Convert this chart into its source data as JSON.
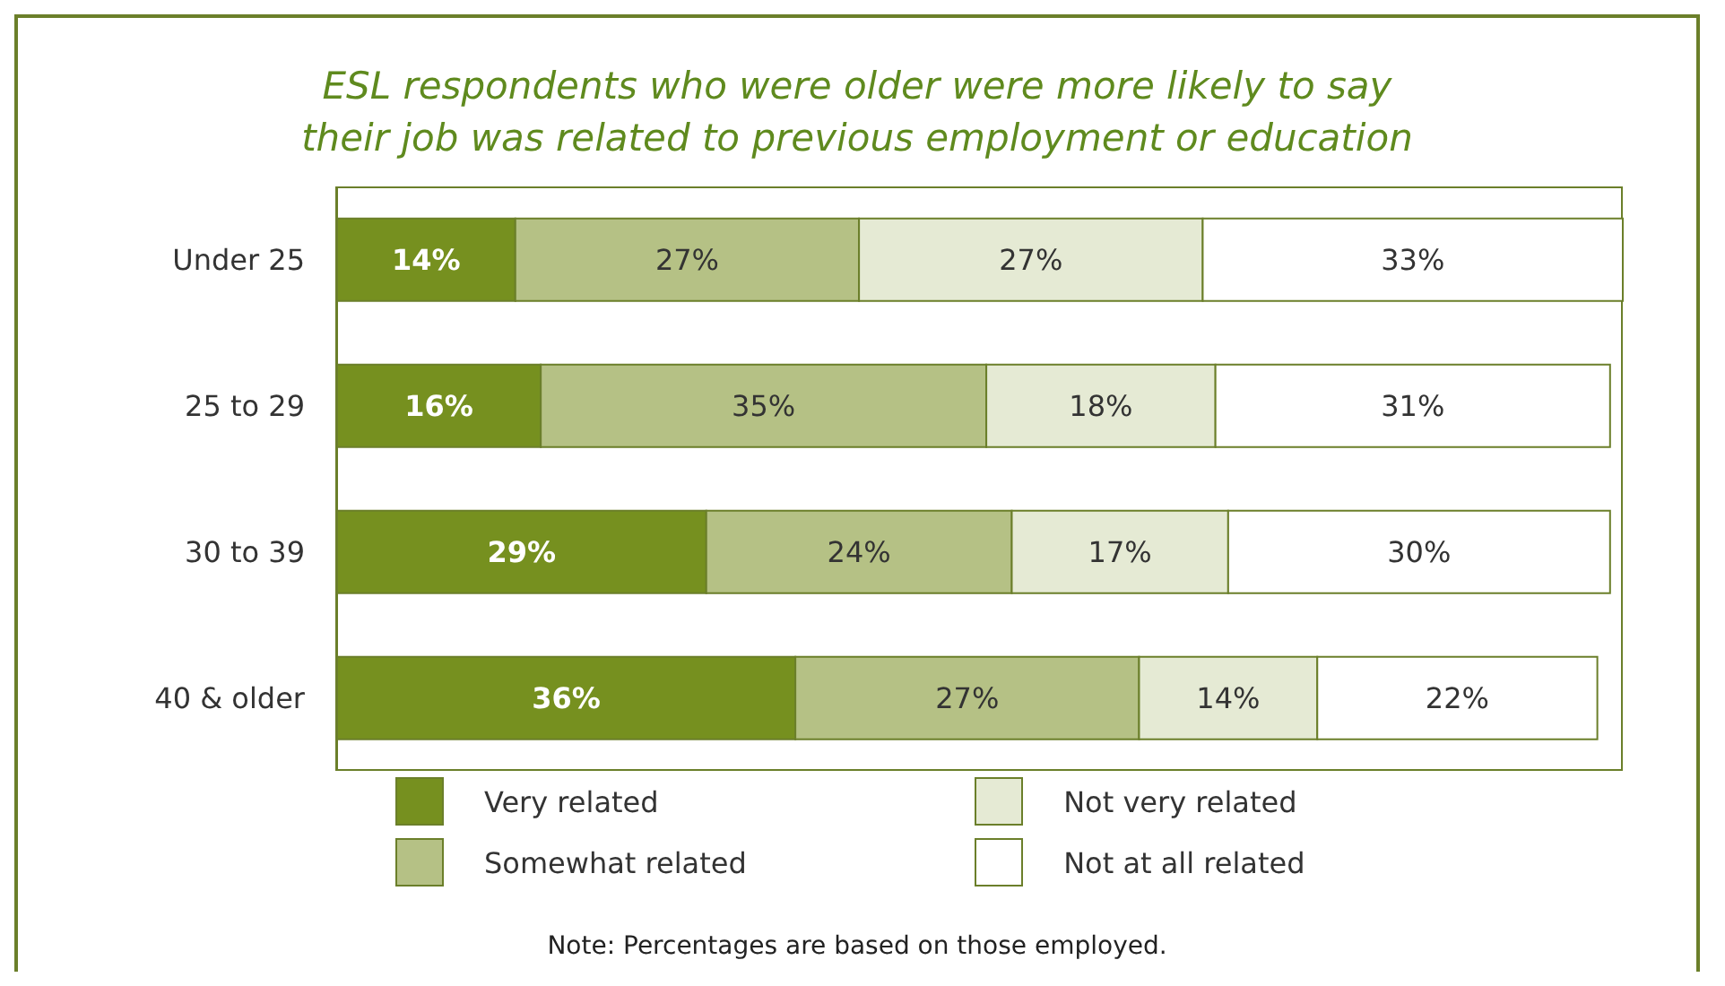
{
  "chart_data": {
    "type": "bar",
    "orientation": "horizontal",
    "stacked": true,
    "title": "ESL respondents who were older were more likely to say\ntheir job was related to previous employment or education",
    "categories": [
      "Under 25",
      "25 to 29",
      "30 to 39",
      "40 & older"
    ],
    "series": [
      {
        "name": "Very related",
        "color": "#76901f",
        "values": [
          14,
          16,
          29,
          36
        ],
        "value_labels": [
          "14%",
          "16%",
          "29%",
          "36%"
        ]
      },
      {
        "name": "Somewhat related",
        "color": "#b5c185",
        "values": [
          27,
          35,
          24,
          27
        ],
        "value_labels": [
          "27%",
          "35%",
          "24%",
          "27%"
        ]
      },
      {
        "name": "Not very related",
        "color": "#e5ead4",
        "values": [
          27,
          18,
          17,
          14
        ],
        "value_labels": [
          "27%",
          "18%",
          "17%",
          "14%"
        ]
      },
      {
        "name": "Not at all related",
        "color": "#ffffff",
        "values": [
          33,
          31,
          30,
          22
        ],
        "value_labels": [
          "33%",
          "31%",
          "30%",
          "22%"
        ]
      }
    ],
    "tick_labels": "y",
    "legend": "bottom",
    "annotations": [
      "Note: Percentages are based on those employed."
    ]
  }
}
